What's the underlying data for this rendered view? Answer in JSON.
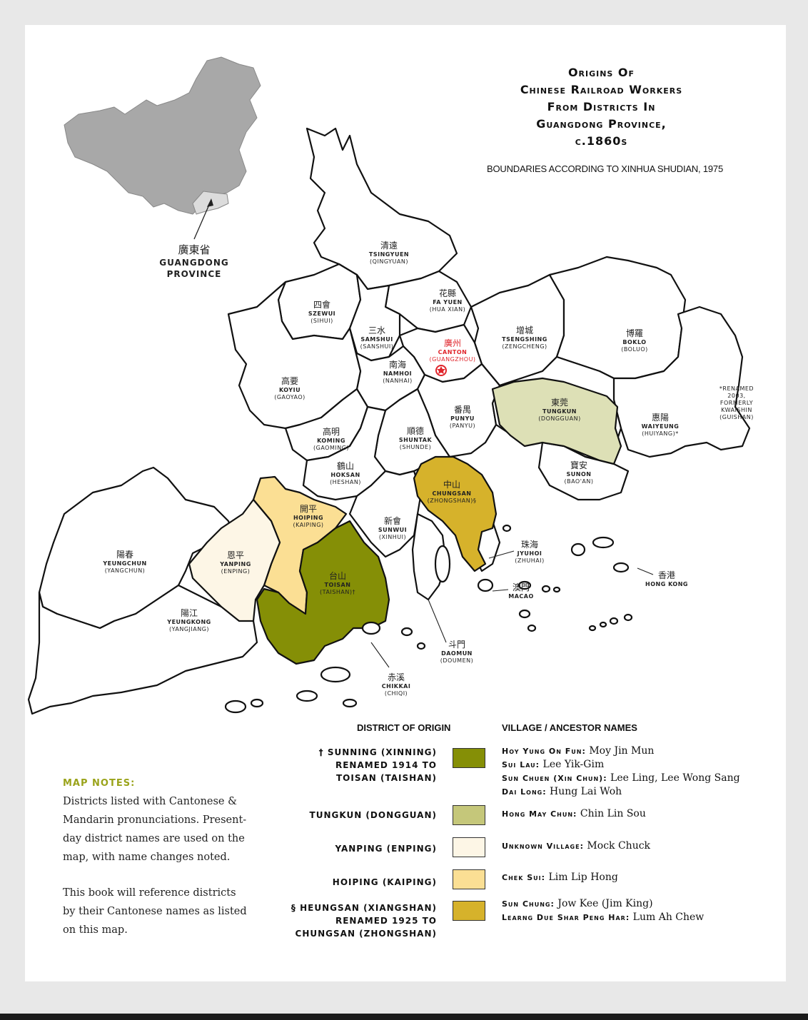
{
  "title_lines": [
    "Origins Of",
    "Chinese Railroad Workers",
    "From Districts In",
    "Guangdong Province,",
    "c.1860s"
  ],
  "subtitle": "BOUNDARIES ACCORDING TO XINHUA SHUDIAN, 1975",
  "inset": {
    "cn": "廣東省",
    "name_line1": "GUANGDONG",
    "name_line2": "PROVINCE"
  },
  "colors": {
    "toisan": "#858f06",
    "tungkun": "#dde0b6",
    "yanping": "#fdf6e6",
    "hoiping": "#fbdf94",
    "chungsan": "#d6b22b",
    "land": "#ffffff",
    "china": "#a8a8a8",
    "canton": "#e0262c",
    "notes_heading": "#9aa31a"
  },
  "districts": [
    {
      "cn": "清遠",
      "en": "TSINGYUEN",
      "md": "(QINGYUAN)"
    },
    {
      "cn": "花縣",
      "en": "FA YUEN",
      "md": "(HUA XIAN)"
    },
    {
      "cn": "四會",
      "en": "SZEWUI",
      "md": "(SIHUI)"
    },
    {
      "cn": "三水",
      "en": "SAMSHUI",
      "md": "(SANSHUI)"
    },
    {
      "cn": "廣州",
      "en": "CANTON",
      "md": "(GUANGZHOU)"
    },
    {
      "cn": "增城",
      "en": "TSENGSHING",
      "md": "(ZENGCHENG)"
    },
    {
      "cn": "博羅",
      "en": "BOKLO",
      "md": "(BOLUO)"
    },
    {
      "cn": "南海",
      "en": "NAMHOI",
      "md": "(NANHAI)"
    },
    {
      "cn": "高要",
      "en": "KOYIU",
      "md": "(GAOYAO)"
    },
    {
      "cn": "番禺",
      "en": "PUNYU",
      "md": "(PANYU)"
    },
    {
      "cn": "東莞",
      "en": "TUNGKUN",
      "md": "(DONGGUAN)"
    },
    {
      "cn": "惠陽",
      "en": "WAIYEUNG",
      "md": "(HUIYANG)*"
    },
    {
      "cn": "高明",
      "en": "KOMING",
      "md": "(GAOMING)"
    },
    {
      "cn": "順德",
      "en": "SHUNTAK",
      "md": "(SHUNDE)"
    },
    {
      "cn": "鶴山",
      "en": "HOKSAN",
      "md": "(HESHAN)"
    },
    {
      "cn": "中山",
      "en": "CHUNGSAN",
      "md": "(ZHONGSHAN)§"
    },
    {
      "cn": "寶安",
      "en": "SUNON",
      "md": "(BAO'AN)"
    },
    {
      "cn": "開平",
      "en": "HOIPING",
      "md": "(KAIPING)"
    },
    {
      "cn": "新會",
      "en": "SUNWUI",
      "md": "(XINHUI)"
    },
    {
      "cn": "陽春",
      "en": "YEUNGCHUN",
      "md": "(YANGCHUN)"
    },
    {
      "cn": "恩平",
      "en": "YANPING",
      "md": "(ENPING)"
    },
    {
      "cn": "台山",
      "en": "TOISAN",
      "md": "(TAISHAN)†"
    },
    {
      "cn": "珠海",
      "en": "JYUHOI",
      "md": "(ZHUHAI)"
    },
    {
      "cn": "香港",
      "en": "HONG KONG",
      "md": ""
    },
    {
      "cn": "澳門",
      "en": "MACAO",
      "md": ""
    },
    {
      "cn": "陽江",
      "en": "YEUNGKONG",
      "md": "(YANGJIANG)"
    },
    {
      "cn": "斗門",
      "en": "DAOMUN",
      "md": "(DOUMEN)"
    },
    {
      "cn": "赤溪",
      "en": "CHIKKAI",
      "md": "(CHIQI)"
    }
  ],
  "renamed_note": [
    "*RENAMED",
    "2003,",
    "FORMERLY",
    "KWAISHIN",
    "(GUISHAN)"
  ],
  "notes": {
    "heading": "MAP NOTES:",
    "p1": "Districts listed with Cantonese & Mandarin pronunciations. Present-day district names are used on the map, with name changes noted.",
    "p2": "This book will reference districts by their Cantonese names as listed on this map."
  },
  "legend": {
    "head_district": "DISTRICT OF ORIGIN",
    "head_village": "VILLAGE / ANCESTOR NAMES",
    "rows": [
      {
        "district": [
          "† SUNNING (XINNING)",
          "RENAMED 1914 TO",
          "TOISAN (TAISHAN)"
        ],
        "entries": [
          {
            "village": "Hoy Yung On Fun:",
            "names": " Moy Jin Mun"
          },
          {
            "village": "Sui Lau:",
            "names": " Lee Yik-Gim"
          },
          {
            "village": "Sun Chuen (Xin Chun):",
            "names": " Lee Ling, Lee Wong Sang"
          },
          {
            "village": "Dai Long:",
            "names": " Hung Lai Woh"
          }
        ]
      },
      {
        "district": [
          "TUNGKUN (DONGGUAN)"
        ],
        "entries": [
          {
            "village": "Hong May Chun:",
            "names": " Chin Lin Sou"
          }
        ]
      },
      {
        "district": [
          "YANPING (ENPING)"
        ],
        "entries": [
          {
            "village": "Unknown Village:",
            "names": " Mock Chuck"
          }
        ]
      },
      {
        "district": [
          "HOIPING (KAIPING)"
        ],
        "entries": [
          {
            "village": "Chek Sui:",
            "names": " Lim Lip Hong"
          }
        ]
      },
      {
        "district": [
          "§ HEUNGSAN (XIANGSHAN)",
          "RENAMED 1925 TO",
          "CHUNGSAN (ZHONGSHAN)"
        ],
        "entries": [
          {
            "village": "Sun Chung:",
            "names": " Jow Kee (Jim King)"
          },
          {
            "village": "Learng Due Shar Peng Har:",
            "names": " Lum Ah Chew"
          }
        ]
      }
    ]
  }
}
